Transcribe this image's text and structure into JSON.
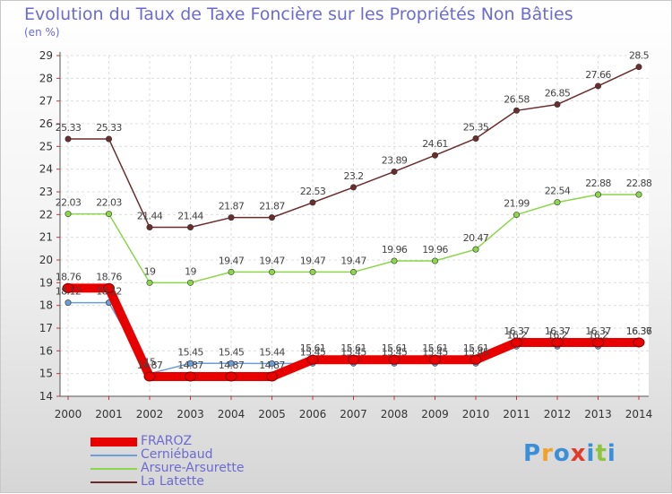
{
  "chart_data": {
    "type": "line",
    "title": "Evolution du Taux de Taxe Foncière sur les Propriétés Non Bâties",
    "unit_label": "(en %)",
    "ylim": [
      14,
      29
    ],
    "y_ticks": [
      "14",
      "15",
      "16",
      "17",
      "18",
      "19",
      "20",
      "21",
      "22",
      "23",
      "24",
      "25",
      "26",
      "27",
      "28",
      "29"
    ],
    "categories": [
      "2000",
      "2001",
      "2002",
      "2003",
      "2004",
      "2005",
      "2006",
      "2007",
      "2008",
      "2009",
      "2010",
      "2011",
      "2012",
      "2013",
      "2014"
    ],
    "grid": true,
    "legend_position": "bottom-left",
    "series": [
      {
        "name": "FRAROZ",
        "color": "#e80000",
        "values": [
          18.76,
          18.76,
          14.87,
          14.87,
          14.87,
          14.87,
          15.61,
          15.61,
          15.61,
          15.61,
          15.61,
          16.37,
          16.37,
          16.37,
          16.37
        ],
        "labels": [
          "18.76",
          "18.76",
          "14.87",
          "14.87",
          "14.87",
          "14.87",
          "15.61",
          "15.61",
          "15.61",
          "15.61",
          "15.61",
          "16.37",
          "16.37",
          "16.37",
          "16.37"
        ]
      },
      {
        "name": "Cerniébaud",
        "color": "#6a9fd8",
        "values": [
          18.12,
          18.12,
          15,
          15.45,
          15.45,
          15.44,
          15.45,
          15.45,
          15.45,
          15.45,
          15.45,
          16.2,
          16.2,
          16.2,
          16.36
        ],
        "labels": [
          "18.12",
          "18.12",
          "15",
          "15.45",
          "15.45",
          "15.44",
          "15.45",
          "15.45",
          "15.45",
          "15.45",
          "15.45",
          "16.2",
          "16.2",
          "16.2",
          "16.36"
        ]
      },
      {
        "name": "Arsure-Arsurette",
        "color": "#8cd64b",
        "values": [
          22.03,
          22.03,
          19,
          19,
          19.47,
          19.47,
          19.47,
          19.47,
          19.96,
          19.96,
          20.47,
          21.99,
          22.54,
          22.88,
          22.88
        ],
        "labels": [
          "22.03",
          "22.03",
          "19",
          "19",
          "19.47",
          "19.47",
          "19.47",
          "19.47",
          "19.96",
          "19.96",
          "20.47",
          "21.99",
          "22.54",
          "22.88",
          "22.88"
        ]
      },
      {
        "name": "La Latette",
        "color": "#6b2c2c",
        "values": [
          25.33,
          25.33,
          21.44,
          21.44,
          21.87,
          21.87,
          22.53,
          23.2,
          23.89,
          24.61,
          25.35,
          26.58,
          26.85,
          27.66,
          28.5
        ],
        "labels": [
          "25.33",
          "25.33",
          "21.44",
          "21.44",
          "21.87",
          "21.87",
          "22.53",
          "23.2",
          "23.89",
          "24.61",
          "25.35",
          "26.58",
          "26.85",
          "27.66",
          "28.5"
        ]
      }
    ]
  },
  "logo": {
    "text": "Proxiti",
    "colors": [
      "#3a8fd8",
      "#f2a12a",
      "#3a8fd8",
      "#e03c2c",
      "#3a8fd8",
      "#8cc63f",
      "#3a8fd8"
    ]
  }
}
